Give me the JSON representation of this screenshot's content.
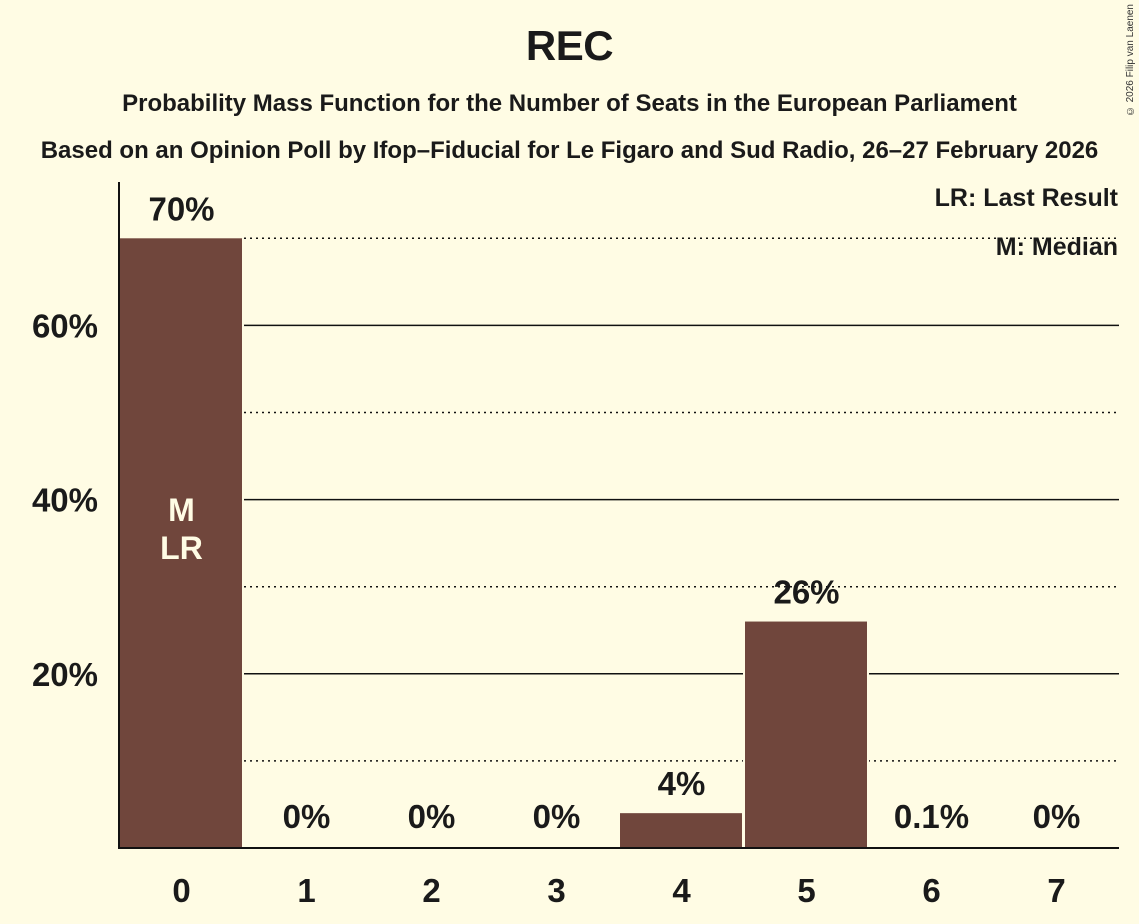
{
  "header": {
    "title": "REC",
    "subtitle": "Probability Mass Function for the Number of Seats in the European Parliament",
    "subtitle2": "Based on an Opinion Poll by Ifop–Fiducial for Le Figaro and Sud Radio, 26–27 February 2026",
    "copyright": "© 2026 Filip van Laenen"
  },
  "legend": {
    "last_result": "LR: Last Result",
    "median": "M: Median"
  },
  "colors": {
    "background": "#FFFCE4",
    "bar": "#70463C",
    "text": "#1a1a1a"
  },
  "chart_data": {
    "type": "bar",
    "title": "REC",
    "subtitle": "Probability Mass Function for the Number of Seats in the European Parliament",
    "xlabel": "",
    "ylabel": "",
    "categories": [
      "0",
      "1",
      "2",
      "3",
      "4",
      "5",
      "6",
      "7"
    ],
    "values": [
      70,
      0,
      0,
      0,
      4,
      26,
      0.1,
      0
    ],
    "value_labels": [
      "70%",
      "0%",
      "0%",
      "0%",
      "4%",
      "26%",
      "0.1%",
      "0%"
    ],
    "ylim": [
      0,
      75
    ],
    "yticks": [
      20,
      40,
      60
    ],
    "ytick_labels": [
      "20%",
      "40%",
      "60%"
    ],
    "grid": {
      "solid_at": [
        20,
        40,
        60
      ],
      "dotted_at": [
        10,
        30,
        50,
        70
      ]
    },
    "annotations": [
      {
        "category": "0",
        "labels": [
          "M",
          "LR"
        ],
        "meaning": "Median and Last Result"
      }
    ],
    "legend": [
      "LR: Last Result",
      "M: Median"
    ],
    "legend_position": "top-right"
  }
}
